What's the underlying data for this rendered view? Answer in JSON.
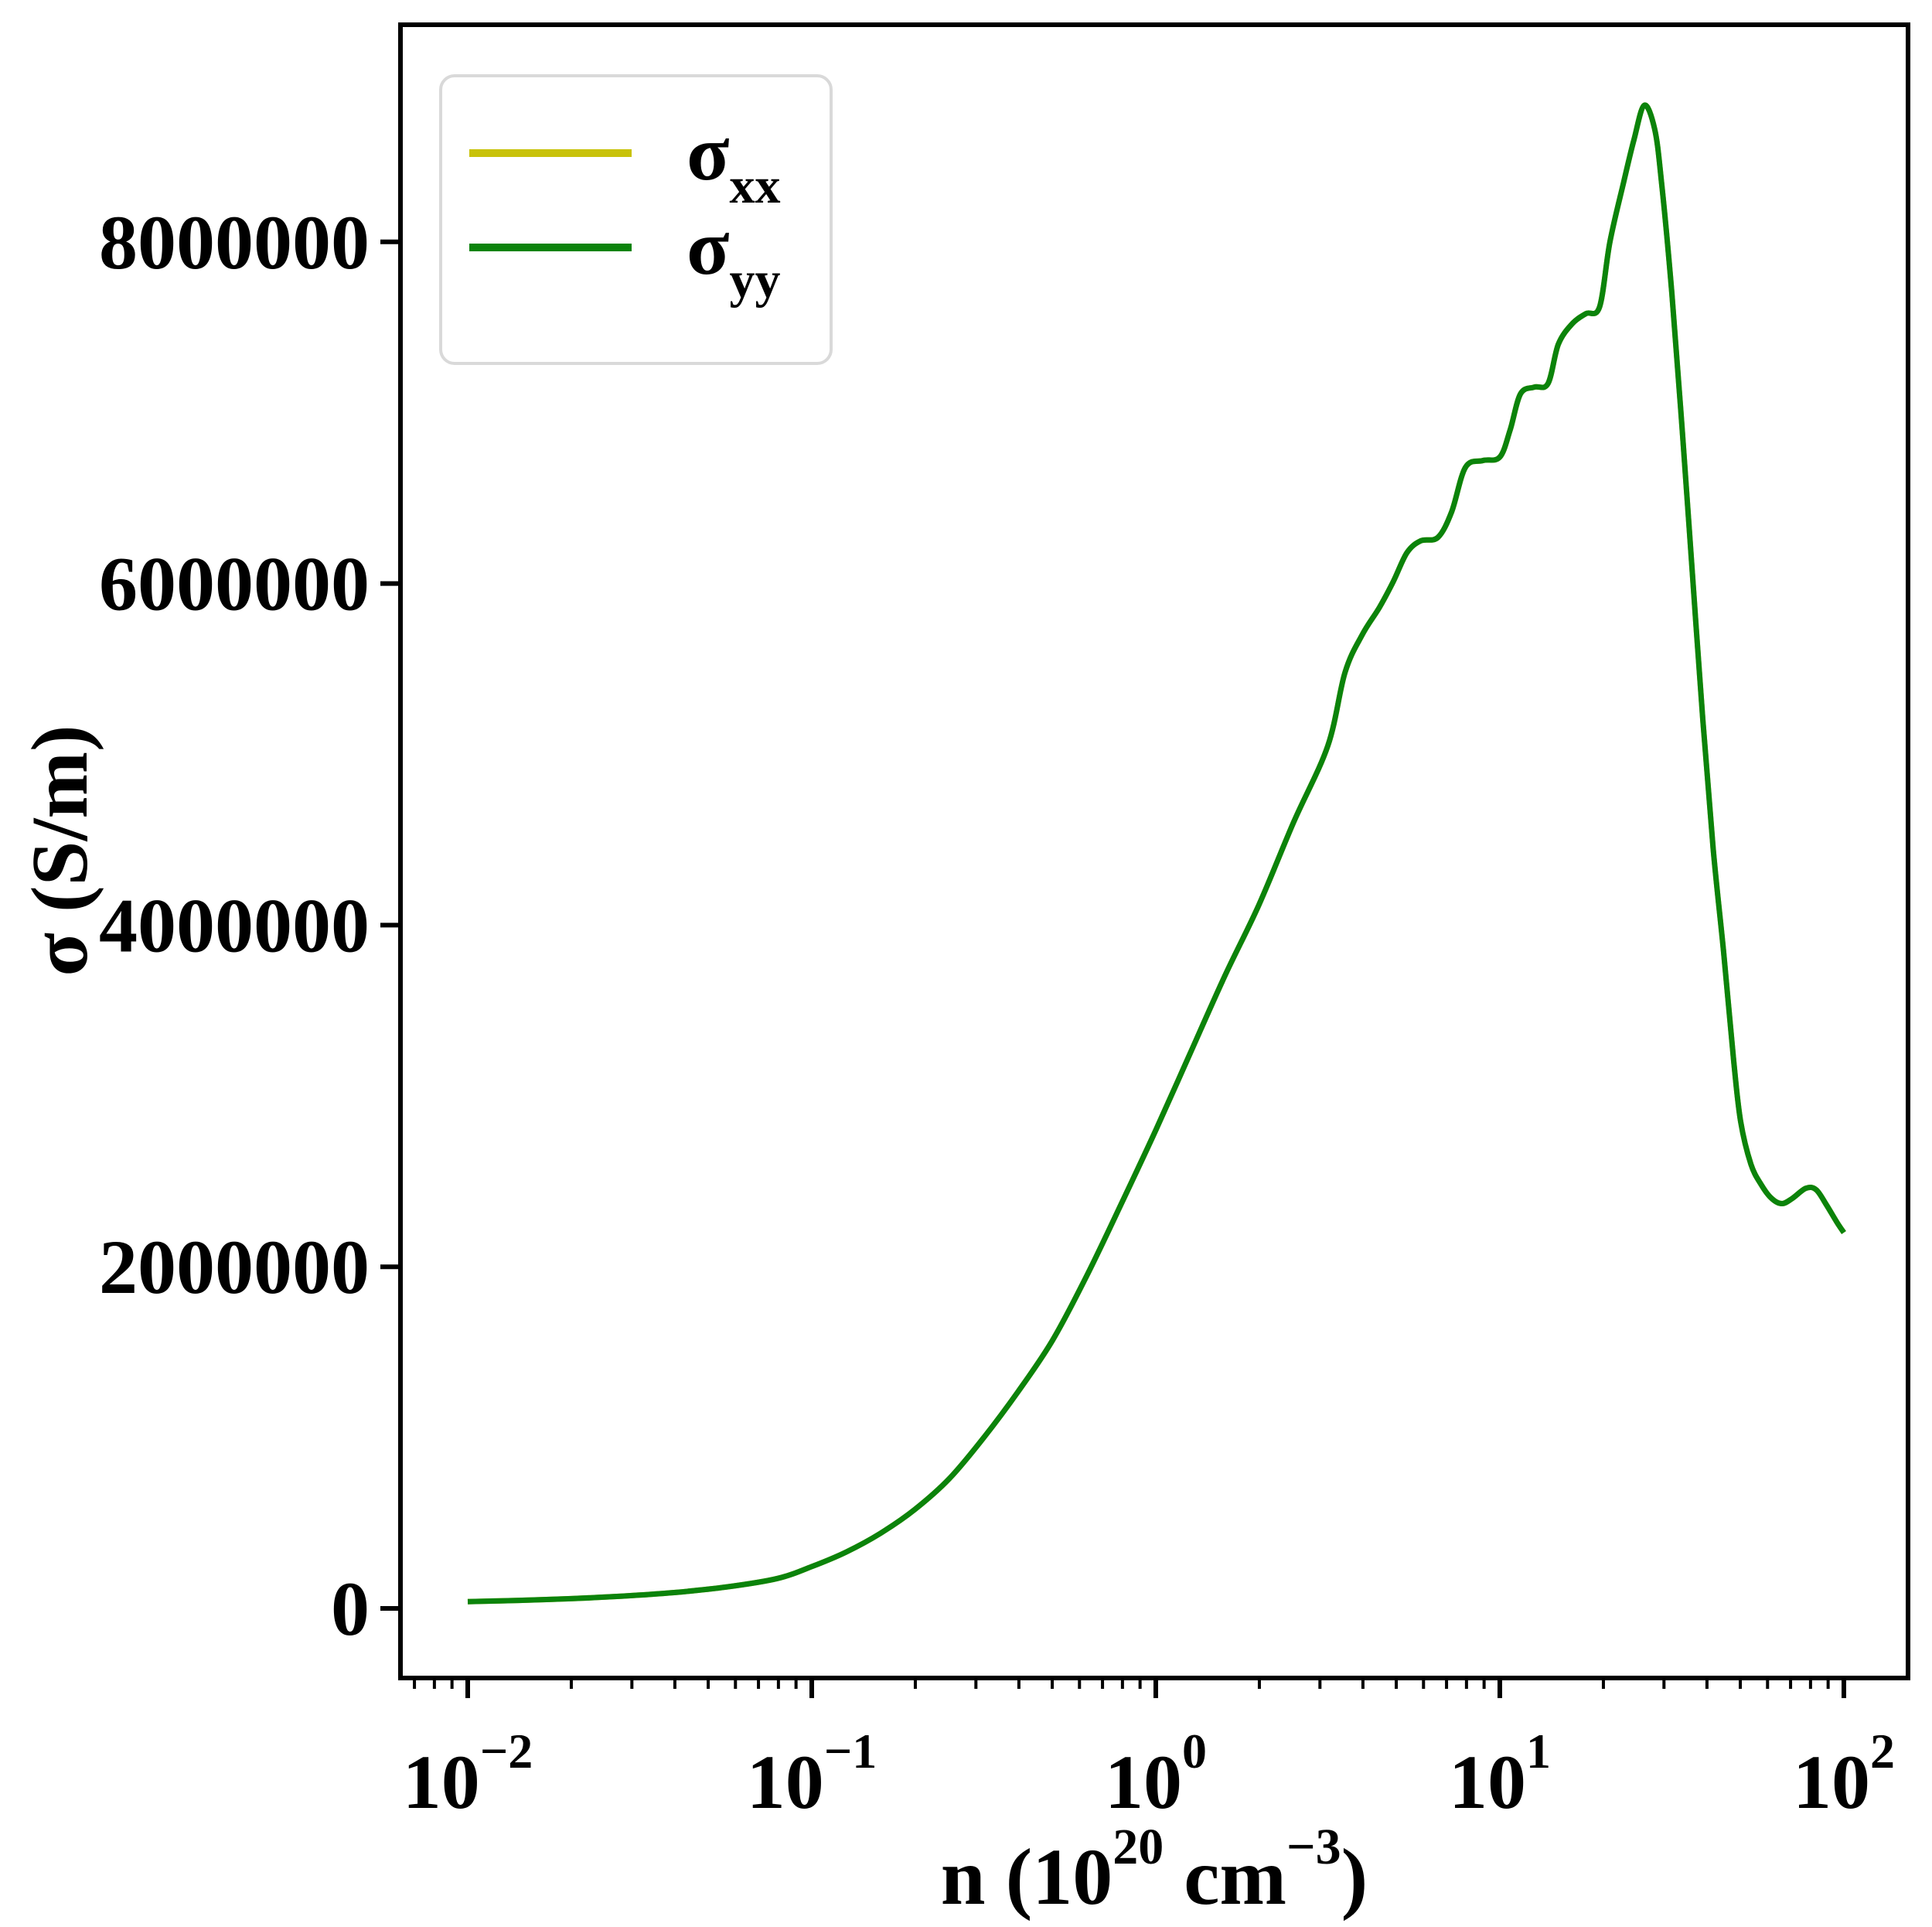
{
  "chart_data": {
    "type": "line",
    "title": "",
    "xlabel": "n (10^20 cm^-3)",
    "xlabel_segments": [
      {
        "t": "n (10",
        "sup": false
      },
      {
        "t": "20",
        "sup": true
      },
      {
        "t": " cm",
        "sup": false
      },
      {
        "t": "−3",
        "sup": true
      },
      {
        "t": ")",
        "sup": false
      }
    ],
    "ylabel": "σ (S/m)",
    "x_scale": "log",
    "x_axis_unit": "10^20 cm^-3",
    "xlim": [
      0.0064,
      154
    ],
    "ylim": [
      -410000,
      9270000
    ],
    "grid": false,
    "x_ticks": [
      {
        "base": "10",
        "exp": "−2",
        "log10": -2
      },
      {
        "base": "10",
        "exp": "−1",
        "log10": -1
      },
      {
        "base": "10",
        "exp": "0",
        "log10": 0
      },
      {
        "base": "10",
        "exp": "1",
        "log10": 1
      },
      {
        "base": "10",
        "exp": "2",
        "log10": 2
      }
    ],
    "y_ticks": [
      {
        "label": "0",
        "value": 0
      },
      {
        "label": "2000000",
        "value": 2000000
      },
      {
        "label": "4000000",
        "value": 4000000
      },
      {
        "label": "6000000",
        "value": 6000000
      },
      {
        "label": "8000000",
        "value": 8000000
      }
    ],
    "legend": {
      "position": "upper left",
      "entries": [
        {
          "name": "sigma_xx",
          "label_base": "σ",
          "label_sub": "xx",
          "color": "#c8c20a"
        },
        {
          "name": "sigma_yy",
          "label_base": "σ",
          "label_sub": "yy",
          "color": "#0b830b"
        }
      ]
    },
    "note": "sigma_xx and sigma_yy curves coincide exactly; the green sigma_yy curve is drawn over the yellow sigma_xx curve. Peak ~8800000 S/m at n ~ 26e20 cm^-3.",
    "x_log10": [
      -2.0,
      -1.85,
      -1.7,
      -1.55,
      -1.4,
      -1.25,
      -1.1,
      -1.0,
      -0.9,
      -0.8,
      -0.7,
      -0.6,
      -0.5,
      -0.4,
      -0.3,
      -0.2,
      -0.1,
      0.0,
      0.1,
      0.2,
      0.3,
      0.4,
      0.5,
      0.55,
      0.6,
      0.65,
      0.69,
      0.73,
      0.77,
      0.82,
      0.86,
      0.9,
      0.95,
      1.0,
      1.03,
      1.06,
      1.1,
      1.14,
      1.17,
      1.21,
      1.25,
      1.29,
      1.32,
      1.36,
      1.39,
      1.42,
      1.45,
      1.47,
      1.5,
      1.53,
      1.56,
      1.59,
      1.62,
      1.65,
      1.68,
      1.7,
      1.73,
      1.76,
      1.79,
      1.82,
      1.85,
      1.89,
      1.92,
      1.95,
      1.98,
      2.0
    ],
    "series": [
      {
        "name": "sigma_xx",
        "color": "#c8c20a",
        "sigma_S_per_m": [
          40000,
          47000,
          57000,
          72000,
          93000,
          125000,
          175000,
          245000,
          330000,
          440000,
          580000,
          760000,
          1000000,
          1270000,
          1570000,
          1950000,
          2370000,
          2800000,
          3250000,
          3700000,
          4120000,
          4600000,
          5050000,
          5480000,
          5700000,
          5860000,
          6010000,
          6180000,
          6250000,
          6270000,
          6420000,
          6680000,
          6720000,
          6740000,
          6900000,
          7110000,
          7150000,
          7170000,
          7400000,
          7520000,
          7580000,
          7620000,
          8000000,
          8350000,
          8600000,
          8800000,
          8660000,
          8350000,
          7700000,
          6900000,
          6050000,
          5200000,
          4450000,
          3850000,
          3200000,
          2850000,
          2600000,
          2480000,
          2400000,
          2370000,
          2400000,
          2460000,
          2450000,
          2360000,
          2260000,
          2200000
        ]
      },
      {
        "name": "sigma_yy",
        "color": "#0b830b",
        "sigma_S_per_m": [
          40000,
          47000,
          57000,
          72000,
          93000,
          125000,
          175000,
          245000,
          330000,
          440000,
          580000,
          760000,
          1000000,
          1270000,
          1570000,
          1950000,
          2370000,
          2800000,
          3250000,
          3700000,
          4120000,
          4600000,
          5050000,
          5480000,
          5700000,
          5860000,
          6010000,
          6180000,
          6250000,
          6270000,
          6420000,
          6680000,
          6720000,
          6740000,
          6900000,
          7110000,
          7150000,
          7170000,
          7400000,
          7520000,
          7580000,
          7620000,
          8000000,
          8350000,
          8600000,
          8800000,
          8660000,
          8350000,
          7700000,
          6900000,
          6050000,
          5200000,
          4450000,
          3850000,
          3200000,
          2850000,
          2600000,
          2480000,
          2400000,
          2370000,
          2400000,
          2460000,
          2450000,
          2360000,
          2260000,
          2200000
        ]
      }
    ]
  }
}
